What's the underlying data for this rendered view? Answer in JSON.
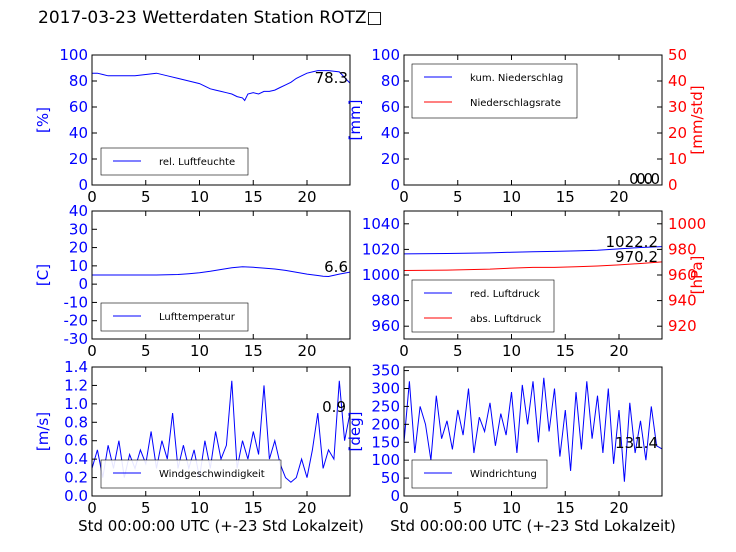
{
  "title": "2017-03-23 Wetterdaten Station ROTZ□",
  "colors": {
    "left_axis": "#0000ff",
    "right_axis": "#ff0000",
    "frame": "#000000"
  },
  "chart_data": [
    {
      "id": "humidity",
      "type": "line",
      "ylabel": "[%]",
      "xlim": [
        0,
        24
      ],
      "xticks": [
        0,
        5,
        10,
        15,
        20
      ],
      "ylim": [
        0,
        100
      ],
      "yticks": [
        0,
        20,
        40,
        60,
        80,
        100
      ],
      "legend": "bottom-left",
      "series": [
        {
          "name": "rel. Luftfeuchte",
          "color": "#0000ff",
          "x": [
            0,
            0.5,
            1,
            1.5,
            2,
            3,
            4,
            5,
            6,
            7,
            8,
            9,
            10,
            10.5,
            11,
            11.5,
            12,
            12.5,
            13,
            13.5,
            14,
            14.2,
            14.5,
            15,
            15.5,
            16,
            16.5,
            17,
            17.5,
            18,
            18.5,
            19,
            19.5,
            20,
            20.5,
            21,
            22,
            23,
            24
          ],
          "y": [
            86,
            86,
            85,
            84,
            84,
            84,
            84,
            85,
            86,
            84,
            82,
            80,
            78,
            76,
            74,
            73,
            72,
            71,
            70,
            68,
            67,
            65,
            70,
            71,
            70,
            72,
            72,
            73,
            75,
            77,
            79,
            82,
            84,
            86,
            87,
            88,
            88,
            87,
            78.3
          ]
        }
      ],
      "annotations": [
        "78.3"
      ]
    },
    {
      "id": "precipitation",
      "type": "line",
      "ylabel": "[mm]",
      "ylabel_right": "[mm/std]",
      "xlim": [
        0,
        24
      ],
      "xticks": [
        0,
        5,
        10,
        15,
        20
      ],
      "ylim": [
        0,
        100
      ],
      "yticks": [
        0,
        20,
        40,
        60,
        80,
        100
      ],
      "ylim_right": [
        0,
        50
      ],
      "yticks_right": [
        0,
        10,
        20,
        30,
        40,
        50
      ],
      "legend": "top-left",
      "series": [
        {
          "name": "kum. Niederschlag",
          "color": "#0000ff",
          "axis": "left",
          "x": [
            0,
            24
          ],
          "y": [
            0,
            0
          ]
        },
        {
          "name": "Niederschlagsrate",
          "color": "#ff0000",
          "axis": "right",
          "x": [
            0,
            24
          ],
          "y": [
            0,
            0
          ]
        }
      ],
      "annotations": [
        "0.0",
        "0.0"
      ]
    },
    {
      "id": "temperature",
      "type": "line",
      "ylabel": "[C]",
      "xlim": [
        0,
        24
      ],
      "xticks": [
        0,
        5,
        10,
        15,
        20
      ],
      "ylim": [
        -30,
        40
      ],
      "yticks": [
        -30,
        -20,
        -10,
        0,
        10,
        20,
        30,
        40
      ],
      "legend": "bottom-left",
      "series": [
        {
          "name": "Lufttemperatur",
          "color": "#0000ff",
          "x": [
            0,
            2,
            4,
            6,
            8,
            9,
            10,
            11,
            12,
            13,
            14,
            15,
            16,
            17,
            18,
            19,
            20,
            21,
            21.5,
            22,
            23,
            24
          ],
          "y": [
            5,
            5,
            5,
            5,
            5.3,
            5.7,
            6.2,
            7,
            8,
            9,
            9.5,
            9.2,
            8.8,
            8.3,
            7.5,
            6.5,
            5.5,
            4.7,
            4.3,
            4.2,
            5.5,
            6.6
          ]
        }
      ],
      "annotations": [
        "6.6"
      ]
    },
    {
      "id": "pressure",
      "type": "line",
      "ylabel_right": "[hPa]",
      "xlim": [
        0,
        24
      ],
      "xticks": [
        0,
        5,
        10,
        15,
        20
      ],
      "ylim": [
        950,
        1050
      ],
      "yticks": [
        960,
        980,
        1000,
        1020,
        1040
      ],
      "ylim_right": [
        910,
        1010
      ],
      "yticks_right": [
        920,
        940,
        960,
        980,
        1000
      ],
      "legend": "bottom-left",
      "series": [
        {
          "name": "red. Luftdruck",
          "color": "#0000ff",
          "axis": "left",
          "x": [
            0,
            4,
            8,
            10,
            12,
            14,
            16,
            18,
            20,
            22,
            24
          ],
          "y": [
            1016.5,
            1016.8,
            1017.3,
            1017.8,
            1018.2,
            1018.4,
            1018.8,
            1019.4,
            1020.4,
            1021.5,
            1022.2
          ]
        },
        {
          "name": "abs. Luftdruck",
          "color": "#ff0000",
          "axis": "right",
          "x": [
            0,
            4,
            8,
            10,
            12,
            14,
            16,
            18,
            20,
            22,
            24
          ],
          "y": [
            963.5,
            963.8,
            964.6,
            965.4,
            965.9,
            965.9,
            966.4,
            967,
            967.9,
            969,
            970.2
          ]
        }
      ],
      "annotations": [
        "1022.2",
        "970.2"
      ]
    },
    {
      "id": "wind_speed",
      "type": "line",
      "ylabel": "[m/s]",
      "xlabel": "Std 00:00:00 UTC (+-23 Std Lokalzeit)",
      "xlim": [
        0,
        24
      ],
      "xticks": [
        0,
        5,
        10,
        15,
        20
      ],
      "ylim": [
        0,
        1.4
      ],
      "yticks": [
        0.0,
        0.2,
        0.4,
        0.6,
        0.8,
        1.0,
        1.2,
        1.4
      ],
      "legend": "bottom-left",
      "series": [
        {
          "name": "Windgeschwindigkeit",
          "color": "#0000ff",
          "x": [
            0,
            0.5,
            1,
            1.5,
            2,
            2.5,
            3,
            3.5,
            4,
            4.5,
            5,
            5.5,
            6,
            6.5,
            7,
            7.5,
            8,
            8.5,
            9,
            9.5,
            10,
            10.5,
            11,
            11.5,
            12,
            12.5,
            13,
            13.5,
            14,
            14.5,
            15,
            15.5,
            16,
            16.5,
            17,
            17.5,
            18,
            18.5,
            19,
            19.5,
            20,
            20.5,
            21,
            21.5,
            22,
            22.5,
            23,
            23.5,
            24
          ],
          "y": [
            0.3,
            0.5,
            0.2,
            0.55,
            0.3,
            0.6,
            0.2,
            0.45,
            0.3,
            0.5,
            0.35,
            0.7,
            0.3,
            0.6,
            0.4,
            0.9,
            0.3,
            0.55,
            0.3,
            0.5,
            0.2,
            0.6,
            0.3,
            0.7,
            0.4,
            0.55,
            1.25,
            0.3,
            0.6,
            0.4,
            0.7,
            0.45,
            1.2,
            0.4,
            0.6,
            0.35,
            0.2,
            0.15,
            0.2,
            0.4,
            0.2,
            0.5,
            0.9,
            0.3,
            0.5,
            0.4,
            1.25,
            0.6,
            0.9
          ]
        }
      ],
      "annotations": [
        "0.9"
      ]
    },
    {
      "id": "wind_direction",
      "type": "line",
      "ylabel": "[deg]",
      "xlabel": "Std 00:00:00 UTC (+-23 Std Lokalzeit)",
      "xlim": [
        0,
        24
      ],
      "xticks": [
        0,
        5,
        10,
        15,
        20
      ],
      "ylim": [
        0,
        360
      ],
      "yticks": [
        0,
        50,
        100,
        150,
        200,
        250,
        300,
        350
      ],
      "legend": "bottom-left",
      "series": [
        {
          "name": "Windrichtung",
          "color": "#0000ff",
          "x": [
            0,
            0.5,
            1,
            1.5,
            2,
            2.5,
            3,
            3.5,
            4,
            4.5,
            5,
            5.5,
            6,
            6.5,
            7,
            7.5,
            8,
            8.5,
            9,
            9.5,
            10,
            10.5,
            11,
            11.5,
            12,
            12.5,
            13,
            13.5,
            14,
            14.5,
            15,
            15.5,
            16,
            16.5,
            17,
            17.5,
            18,
            18.5,
            19,
            19.5,
            20,
            20.5,
            21,
            21.5,
            22,
            22.5,
            23,
            23.5,
            24
          ],
          "y": [
            150,
            320,
            120,
            250,
            200,
            100,
            280,
            160,
            210,
            130,
            240,
            170,
            300,
            120,
            220,
            180,
            260,
            140,
            230,
            170,
            290,
            120,
            310,
            200,
            320,
            150,
            330,
            180,
            300,
            110,
            240,
            70,
            290,
            130,
            320,
            160,
            280,
            120,
            300,
            90,
            240,
            40,
            260,
            120,
            210,
            100,
            250,
            140,
            131.4
          ]
        }
      ],
      "annotations": [
        "131.4"
      ]
    }
  ]
}
